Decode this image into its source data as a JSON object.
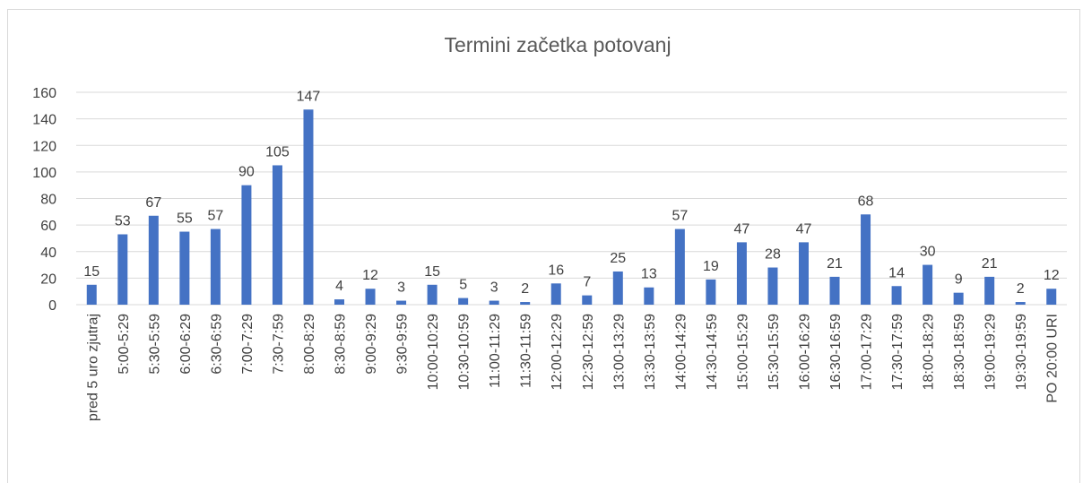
{
  "chart_data": {
    "type": "bar",
    "title": "Termini začetka potovanj",
    "categories": [
      "pred 5 uro zjutraj",
      "5:00-5:29",
      "5:30-5:59",
      "6:00-6:29",
      "6:30-6:59",
      "7:00-7:29",
      "7:30-7:59",
      "8:00-8:29",
      "8:30-8:59",
      "9:00-9:29",
      "9:30-9:59",
      "10:00-10:29",
      "10:30-10:59",
      "11:00-11:29",
      "11:30-11:59",
      "12:00-12:29",
      "12:30-12:59",
      "13:00-13:29",
      "13:30-13:59",
      "14:00-14:29",
      "14:30-14:59",
      "15:00-15:29",
      "15:30-15:59",
      "16:00-16:29",
      "16:30-16:59",
      "17:00-17:29",
      "17:30-17:59",
      "18:00-18:29",
      "18:30-18:59",
      "19:00-19:29",
      "19:30-19:59",
      "PO 20:00 URI"
    ],
    "values": [
      15,
      53,
      67,
      55,
      57,
      90,
      105,
      147,
      4,
      12,
      3,
      15,
      5,
      3,
      2,
      16,
      7,
      25,
      13,
      57,
      19,
      47,
      28,
      47,
      21,
      68,
      14,
      30,
      9,
      21,
      2,
      12
    ],
    "color": "#4472c4",
    "ylim": [
      0,
      160
    ],
    "yticks": [
      0,
      20,
      40,
      60,
      80,
      100,
      120,
      140,
      160
    ],
    "grid": true
  }
}
